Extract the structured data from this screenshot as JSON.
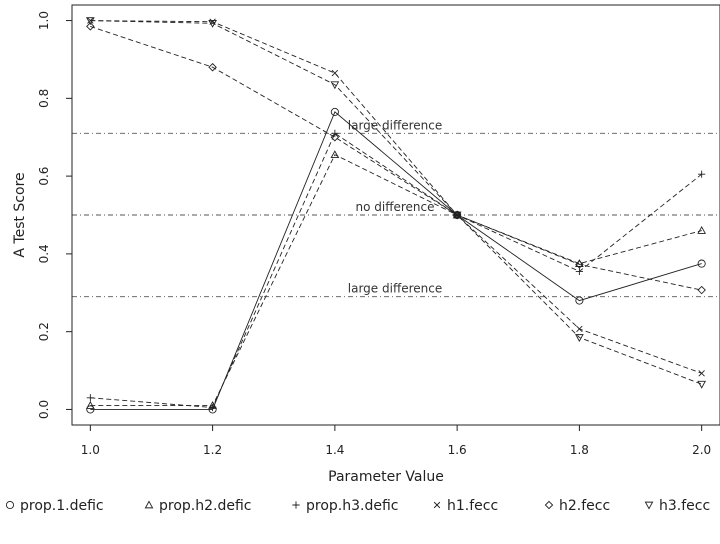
{
  "chart_data": {
    "type": "line",
    "xlabel": "Parameter Value",
    "ylabel": "A Test Score",
    "x": [
      1.0,
      1.2,
      1.4,
      1.6,
      1.8,
      2.0
    ],
    "x_tick_labels": [
      "1.0",
      "1.2",
      "1.4",
      "1.6",
      "1.8",
      "2.0"
    ],
    "y_ticks": [
      0.0,
      0.2,
      0.4,
      0.6,
      0.8,
      1.0
    ],
    "y_tick_labels": [
      "0.0",
      "0.2",
      "0.4",
      "0.6",
      "0.8",
      "1.0"
    ],
    "xlim": [
      0.97,
      2.03
    ],
    "ylim": [
      -0.04,
      1.04
    ],
    "grid": false,
    "legend_position": "bottom",
    "reference_lines": [
      {
        "y": 0.71,
        "label": "large difference"
      },
      {
        "y": 0.5,
        "label": "no difference"
      },
      {
        "y": 0.29,
        "label": "large difference"
      }
    ],
    "series": [
      {
        "name": "prop.1.defic",
        "marker": "circle",
        "line": "solid",
        "values": [
          0.0,
          0.0,
          0.765,
          0.5,
          0.28,
          0.375
        ]
      },
      {
        "name": "prop.h2.defic",
        "marker": "triangle-up",
        "line": "dashed",
        "values": [
          0.01,
          0.01,
          0.655,
          0.5,
          0.375,
          0.46
        ]
      },
      {
        "name": "prop.h3.defic",
        "marker": "plus",
        "line": "dashed",
        "values": [
          0.03,
          0.005,
          0.71,
          0.5,
          0.355,
          0.605
        ]
      },
      {
        "name": "h1.fecc",
        "marker": "cross",
        "line": "dashed",
        "values": [
          1.0,
          0.997,
          0.865,
          0.5,
          0.207,
          0.093
        ]
      },
      {
        "name": "h2.fecc",
        "marker": "diamond",
        "line": "dashed",
        "values": [
          0.985,
          0.88,
          0.7,
          0.5,
          0.373,
          0.307
        ]
      },
      {
        "name": "h3.fecc",
        "marker": "triangle-down",
        "line": "dashed",
        "values": [
          1.0,
          0.993,
          0.835,
          0.5,
          0.185,
          0.065
        ]
      }
    ]
  }
}
